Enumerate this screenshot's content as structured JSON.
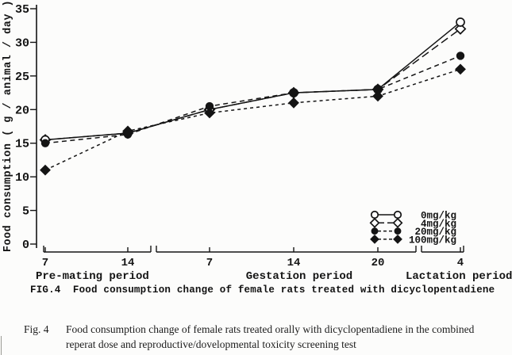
{
  "page": {
    "background": "#fcfcfb",
    "ink": "#141414"
  },
  "chart_data": {
    "type": "line",
    "title": "",
    "xlabel": "",
    "ylabel": "Food consumption ( g / animal / day )",
    "ylim": [
      0,
      35
    ],
    "yticks": [
      0,
      5,
      10,
      15,
      20,
      25,
      30,
      35
    ],
    "grid": false,
    "legend_position": "lower-right",
    "x_groups": [
      {
        "label": "Pre-mating period",
        "ticks": [
          "7",
          "14"
        ]
      },
      {
        "label": "Gestation period",
        "ticks": [
          "7",
          "14",
          "20"
        ]
      },
      {
        "label": "Lactation period",
        "ticks": [
          "4"
        ]
      }
    ],
    "x_categories": [
      "Pre-mating day 7",
      "Pre-mating day 14",
      "Gestation day 7",
      "Gestation day 14",
      "Gestation day 20",
      "Lactation day 4"
    ],
    "series": [
      {
        "name": "0mg/kg",
        "marker": "open-circle",
        "line": "solid",
        "values": [
          15.5,
          16.5,
          20.0,
          22.5,
          23.0,
          33.0
        ]
      },
      {
        "name": "4mg/kg",
        "marker": "open-diamond",
        "line": "long-dash",
        "values": [
          15.5,
          16.5,
          20.0,
          22.5,
          23.0,
          32.0
        ]
      },
      {
        "name": "20mg/kg",
        "marker": "filled-circle",
        "line": "dash",
        "values": [
          15.0,
          16.3,
          20.5,
          22.5,
          23.0,
          28.0
        ]
      },
      {
        "name": "100mg/kg",
        "marker": "filled-diamond",
        "line": "short-dash",
        "values": [
          11.0,
          16.8,
          19.5,
          21.0,
          22.0,
          26.0
        ]
      }
    ]
  },
  "captions": {
    "fig_inline": "FIG.4  Food consumption change of female rats treated with dicyclopentadiene",
    "doc_label": "Fig. 4",
    "doc_line1": "Food consumption change of female rats treated orally with dicyclopentadiene in the combined",
    "doc_line2": "reperat dose and reproductive/dovelopmental toxicity screening test"
  }
}
